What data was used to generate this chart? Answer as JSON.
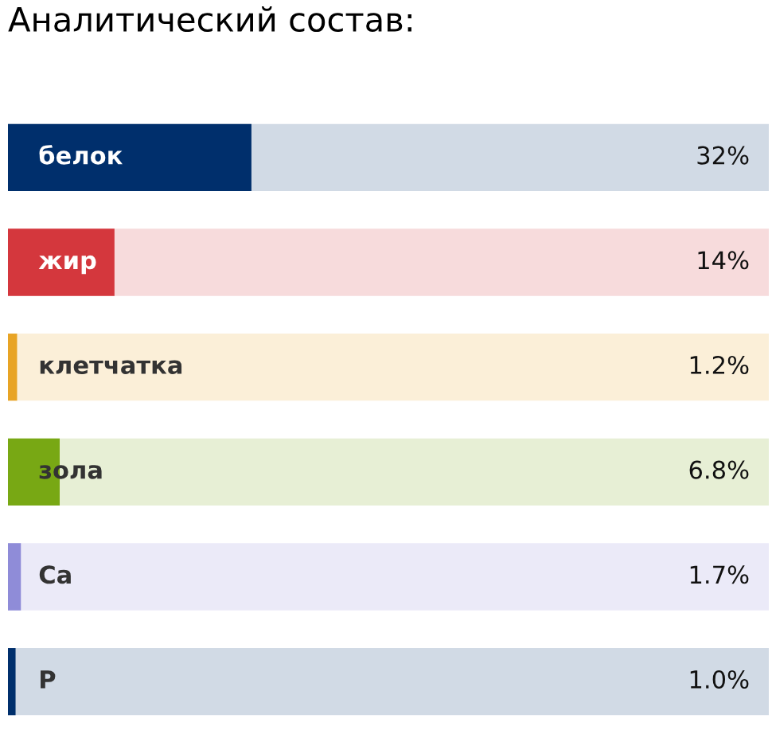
{
  "chart_data": {
    "type": "bar",
    "orientation": "horizontal",
    "title": "Аналитический состав:",
    "categories": [
      "белок",
      "жир",
      "клетчатка",
      "зола",
      "Ca",
      "P"
    ],
    "series": [
      {
        "colors": [
          "#002f6c",
          "#d4373d",
          "#e8a425",
          "#78a814",
          "#8f8cd8",
          "#002f6c"
        ],
        "values": [
          32,
          14,
          1.2,
          6.8,
          1.7,
          1.0
        ],
        "value_labels": [
          "32%",
          "14%",
          "1.2%",
          "6.8%",
          "1.7%",
          "1.0%"
        ]
      }
    ],
    "xlim": [
      0,
      100
    ],
    "tick_labels": false,
    "legend": false
  }
}
